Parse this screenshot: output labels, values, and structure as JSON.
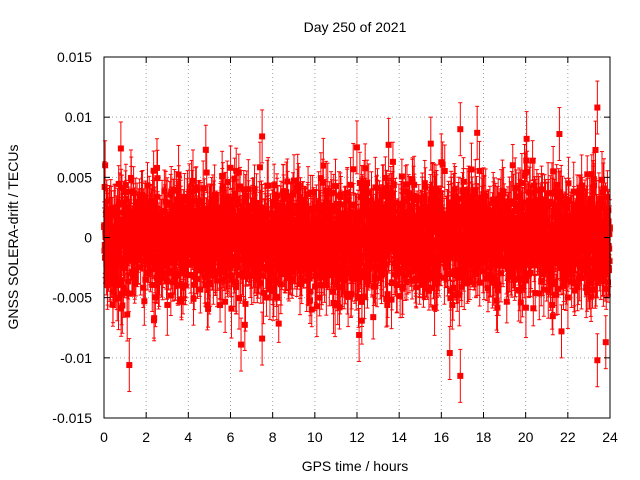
{
  "chart_data": {
    "type": "scatter",
    "title": "Day 250 of 2021",
    "xlabel": "GPS time / hours",
    "ylabel": "GNSS SOLERA-drift / TECUs",
    "xlim": [
      0,
      24
    ],
    "ylim": [
      -0.015,
      0.015
    ],
    "xticks": [
      0,
      2,
      4,
      6,
      8,
      10,
      12,
      14,
      16,
      18,
      20,
      22,
      24
    ],
    "yticks": [
      -0.015,
      -0.01,
      -0.005,
      0,
      0.005,
      0.01,
      0.015
    ],
    "xtick_labels": [
      "0",
      "2",
      "4",
      "6",
      "8",
      "10",
      "12",
      "14",
      "16",
      "18",
      "20",
      "22",
      "24"
    ],
    "ytick_labels": [
      "-0.015",
      "-0.01",
      "-0.005",
      "0",
      "0.005",
      "0.01",
      "0.015"
    ],
    "grid": true,
    "error_bars": true,
    "series_color": "#ff0000",
    "point_count": 2880,
    "typical_spread": 0.0022,
    "typical_error": 0.002,
    "notable_points": [
      {
        "x": 1.2,
        "y": -0.0106
      },
      {
        "x": 16.9,
        "y": -0.0115
      },
      {
        "x": 16.9,
        "y": 0.009
      },
      {
        "x": 23.4,
        "y": 0.0108
      },
      {
        "x": 23.8,
        "y": -0.0087
      },
      {
        "x": 7.5,
        "y": 0.0084
      },
      {
        "x": 7.5,
        "y": -0.0084
      },
      {
        "x": 12.1,
        "y": -0.0081
      },
      {
        "x": 6.5,
        "y": -0.0089
      },
      {
        "x": 17.7,
        "y": 0.0087
      },
      {
        "x": 0.8,
        "y": 0.0074
      },
      {
        "x": 21.6,
        "y": 0.0086
      },
      {
        "x": 16.4,
        "y": -0.0096
      },
      {
        "x": 23.4,
        "y": -0.0102
      },
      {
        "x": 1.1,
        "y": -0.0064
      },
      {
        "x": 21.7,
        "y": -0.0078
      },
      {
        "x": 13.5,
        "y": 0.0077
      },
      {
        "x": 15.5,
        "y": 0.0078
      }
    ]
  }
}
